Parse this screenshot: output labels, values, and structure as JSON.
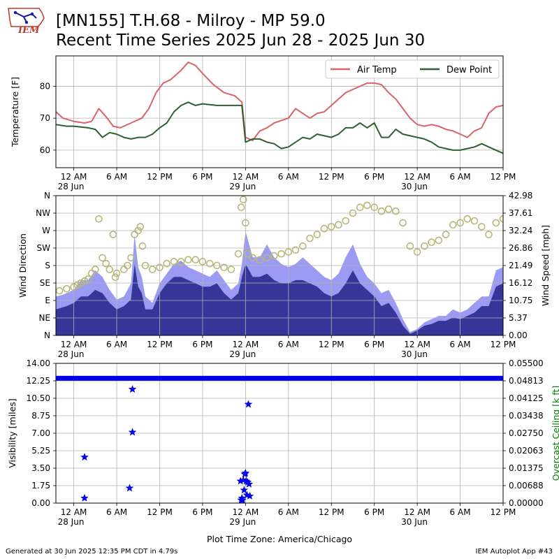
{
  "header": {
    "title_line1": "[MN155] T.H.68 - Milroy - MP 59.0",
    "title_line2": "Recent Time Series 2025 Jun 28 - 2025 Jun 30",
    "logo_text": "IEM"
  },
  "footer": {
    "generated": "Generated at 30 Jun 2025 12:35 PM CDT in 4.79s",
    "app": "IEM Autoplot App #43"
  },
  "x_axis": {
    "ticks": [
      0,
      6,
      12,
      18,
      24,
      30,
      36,
      42,
      48,
      54,
      60
    ],
    "tick_labels": [
      "12 AM",
      "6 AM",
      "12 PM",
      "6 PM",
      "12 AM",
      "6 AM",
      "12 PM",
      "6 PM",
      "12 AM",
      "6 AM",
      "12 PM"
    ],
    "date_labels": [
      {
        "at": 0,
        "text": "28 Jun"
      },
      {
        "at": 24,
        "text": "29 Jun"
      },
      {
        "at": 48,
        "text": "30 Jun"
      }
    ],
    "range": [
      -2.5,
      60
    ],
    "timezone_label": "Plot Time Zone: America/Chicago"
  },
  "colors": {
    "air_temp": "#d9636a",
    "dew_point": "#2f5f32",
    "wind_gust": "#9b9bf3",
    "wind_speed": "#363699",
    "wind_dir": "#b7b77a",
    "visibility": "#0000ee",
    "ceiling_axis": "#008000",
    "grid": "#b0b0b0"
  },
  "chart_data": [
    {
      "type": "line",
      "ylabel": "Temperature [F]",
      "ylim": [
        54.5,
        89.5
      ],
      "yticks": [
        60,
        70,
        80
      ],
      "grid": true,
      "legend_placement": "top-right",
      "series": [
        {
          "name": "Air Temp",
          "x": [
            -2.5,
            -1.5,
            0,
            1.5,
            2.5,
            3.5,
            4.5,
            5.5,
            6.5,
            8,
            9.5,
            10.5,
            11.5,
            12.5,
            13.5,
            15,
            16,
            17,
            18,
            19.5,
            21,
            22.5,
            23.5,
            24,
            25,
            26,
            27,
            28,
            30,
            31,
            33,
            34,
            35,
            37,
            38,
            39,
            41,
            42,
            43,
            44,
            45,
            46,
            47,
            48,
            49,
            50,
            51,
            52,
            53,
            54,
            55,
            56,
            57,
            58,
            59,
            60
          ],
          "y": [
            72,
            70,
            69,
            68.5,
            69,
            73,
            70.5,
            67.5,
            67,
            68.5,
            70,
            73,
            78,
            81,
            82,
            85,
            87.5,
            86.5,
            84,
            80.5,
            78,
            77,
            75,
            64,
            63,
            66,
            67,
            68.5,
            70,
            73,
            70,
            71.5,
            72,
            76,
            78,
            79,
            81,
            81,
            80.5,
            78,
            76,
            73,
            70,
            68,
            67.5,
            68,
            67.5,
            66.5,
            66,
            65,
            64,
            66,
            67,
            71.5,
            73.5,
            74
          ]
        },
        {
          "name": "Dew Point",
          "x": [
            -2.5,
            -1,
            0,
            2,
            3,
            4,
            5,
            6,
            7,
            8,
            9,
            10,
            11,
            12,
            13,
            14,
            15,
            16,
            17,
            18,
            20,
            22,
            23.5,
            24,
            25,
            26,
            27,
            28,
            29,
            30,
            32,
            33,
            34,
            36,
            37,
            38,
            39,
            40,
            41,
            42,
            43,
            44,
            45,
            46,
            48,
            49,
            50,
            51,
            52,
            53,
            54,
            55,
            56,
            57,
            58,
            59,
            60
          ],
          "y": [
            68,
            67.5,
            67.5,
            67,
            66.5,
            64,
            65.5,
            65,
            64,
            63.5,
            64,
            64,
            65,
            67,
            68.5,
            72,
            74,
            75,
            74,
            74.5,
            74,
            74,
            74,
            62.5,
            63.5,
            63.5,
            62.5,
            62,
            60.5,
            61,
            64,
            63.5,
            65,
            64,
            65,
            67,
            67,
            68.5,
            67,
            68.5,
            64,
            64,
            66.5,
            65,
            64,
            63.5,
            62.5,
            61,
            60.5,
            60,
            60,
            60.5,
            61,
            62,
            61,
            60,
            59
          ]
        }
      ]
    },
    {
      "type": "bar",
      "ylabel": "Wind Direction",
      "y2label": "Wind Speed [mph]",
      "ylim": [
        0,
        360
      ],
      "y2lim": [
        0,
        42.98
      ],
      "yticks": [
        0,
        45,
        90,
        135,
        180,
        225,
        270,
        315,
        360
      ],
      "ytick_labels": [
        "N",
        "NE",
        "E",
        "SE",
        "S",
        "SW",
        "W",
        "NW",
        "N"
      ],
      "y2ticks": [
        0,
        5.37,
        10.75,
        16.12,
        21.49,
        26.86,
        32.24,
        37.61,
        42.98
      ],
      "y2tick_labels": [
        "0.00",
        "5.37",
        "10.75",
        "16.12",
        "21.49",
        "26.86",
        "32.24",
        "37.61",
        "42.98"
      ],
      "grid": true,
      "series": [
        {
          "name": "Wind Gust",
          "x": [
            -2.5,
            -1.5,
            0,
            1,
            2,
            3,
            4,
            5,
            6,
            7,
            8,
            8.5,
            9,
            9.5,
            10,
            11,
            12,
            13,
            14,
            15,
            16,
            17,
            18,
            19,
            20,
            21,
            22,
            23,
            23.5,
            24,
            25,
            26,
            27,
            28,
            29,
            30,
            31,
            32,
            33,
            34,
            35,
            36,
            37,
            38,
            39,
            40,
            41,
            42,
            43,
            44,
            45,
            46,
            47,
            48,
            49,
            50,
            51,
            52,
            53,
            54,
            55,
            56,
            57,
            58,
            59,
            60
          ],
          "y": [
            12,
            12.5,
            14,
            17,
            17,
            20,
            18,
            14,
            11,
            12,
            16,
            31,
            21,
            18,
            12,
            10,
            16,
            19,
            22,
            23,
            21,
            20,
            19,
            18,
            20,
            17,
            14,
            16,
            22,
            32,
            24,
            24,
            28,
            24,
            22,
            21,
            22,
            24,
            22,
            20,
            18,
            17,
            19,
            24,
            28,
            22,
            18,
            16,
            13,
            14,
            10,
            5,
            1,
            2,
            4,
            5,
            6,
            6,
            8,
            7,
            8,
            10,
            12,
            12,
            20,
            21
          ]
        },
        {
          "name": "Wind Speed",
          "x": [
            -2.5,
            -1,
            0,
            1,
            2,
            3,
            4,
            5,
            6,
            7,
            8,
            8.5,
            9,
            9.5,
            10,
            11,
            12,
            13,
            14,
            15,
            16,
            17,
            18,
            19,
            20,
            21,
            22,
            23,
            23.5,
            24,
            25,
            26,
            27,
            28,
            29,
            30,
            31,
            32,
            33,
            34,
            35,
            36,
            37,
            38,
            39,
            40,
            41,
            42,
            43,
            44,
            45,
            46,
            47,
            48,
            49,
            50,
            51,
            52,
            53,
            54,
            55,
            56,
            57,
            58,
            59,
            60
          ],
          "y": [
            8,
            9,
            10,
            12,
            12,
            14,
            13,
            10,
            8,
            9,
            11,
            22,
            15,
            13,
            8,
            8,
            13,
            16,
            18,
            18,
            17,
            16,
            15,
            15,
            16,
            13,
            11,
            13,
            18,
            22,
            18,
            18,
            19,
            17,
            16,
            16,
            17,
            17,
            16,
            15,
            13,
            12,
            13,
            16,
            20,
            16,
            14,
            12,
            9,
            10,
            7,
            3,
            0.5,
            1.5,
            3,
            3.5,
            4.5,
            4.5,
            5.5,
            5,
            6,
            7,
            9,
            9,
            15,
            16
          ]
        },
        {
          "name": "Wind Direction",
          "type": "scatter",
          "x": [
            -2,
            -1,
            0,
            0.5,
            1,
            1.5,
            2,
            2.5,
            3,
            3.5,
            4,
            4.5,
            5,
            5.5,
            5.8,
            6,
            7,
            7.5,
            8,
            8.5,
            9,
            9.3,
            9.6,
            10,
            11,
            12,
            13,
            14,
            15,
            16,
            17,
            18,
            19,
            20,
            21,
            22,
            23,
            23.4,
            23.7,
            24,
            24.3,
            25,
            26,
            27,
            28,
            29,
            30,
            31,
            32,
            33,
            34,
            35,
            36,
            37,
            38,
            39,
            40,
            41,
            42,
            43,
            44,
            45,
            46,
            47,
            48,
            49,
            50,
            51,
            52,
            53,
            54,
            55,
            56,
            57,
            58,
            59,
            60
          ],
          "y": [
            115,
            120,
            125,
            130,
            135,
            140,
            145,
            160,
            170,
            300,
            200,
            185,
            170,
            260,
            150,
            160,
            170,
            180,
            200,
            260,
            270,
            280,
            230,
            180,
            170,
            175,
            185,
            190,
            190,
            195,
            195,
            190,
            185,
            180,
            175,
            170,
            210,
            330,
            350,
            290,
            210,
            200,
            195,
            200,
            205,
            210,
            215,
            220,
            230,
            250,
            260,
            275,
            280,
            285,
            295,
            315,
            330,
            335,
            330,
            320,
            325,
            320,
            290,
            230,
            215,
            230,
            240,
            245,
            260,
            285,
            290,
            300,
            295,
            280,
            260,
            290,
            300
          ]
        }
      ]
    },
    {
      "type": "scatter",
      "ylabel": "Visibility [miles]",
      "y2label": "Overcast Ceiling [k ft]",
      "ylim": [
        0,
        14
      ],
      "y2lim": [
        0,
        0.055
      ],
      "yticks": [
        0,
        1.75,
        3.5,
        5.25,
        7,
        8.75,
        10.5,
        12.25,
        14
      ],
      "ytick_labels": [
        "0.00",
        "1.75",
        "3.50",
        "5.25",
        "7.00",
        "8.75",
        "10.50",
        "12.25",
        "14.00"
      ],
      "y2ticks": [
        0,
        0.00688,
        0.01375,
        0.02063,
        0.0275,
        0.03438,
        0.04125,
        0.04813,
        0.055
      ],
      "y2tick_labels": [
        "0.00000",
        "0.00688",
        "0.01375",
        "0.02063",
        "0.02750",
        "0.03438",
        "0.04125",
        "0.04813",
        "0.05500"
      ],
      "grid": true,
      "series": [
        {
          "name": "Visibility",
          "baseline_value": 12.5,
          "baseline_x": [
            -2.5,
            60
          ],
          "x": [
            1.5,
            1.5,
            7.8,
            8.2,
            8.2,
            23.3,
            23.4,
            23.5,
            23.6,
            23.7,
            23.8,
            23.9,
            24,
            24.1,
            24.2,
            24.3,
            24.4,
            24.5,
            24.6
          ],
          "y": [
            0.5,
            4.6,
            1.5,
            7.1,
            11.4,
            2.2,
            0.3,
            0.5,
            0.3,
            2.3,
            1.3,
            2.9,
            3.0,
            2.2,
            0.8,
            2.1,
            9.9,
            1.9,
            0.7
          ]
        }
      ]
    }
  ]
}
